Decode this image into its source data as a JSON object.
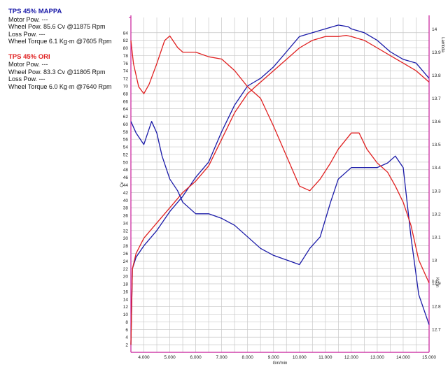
{
  "legend": [
    {
      "title": "TPS 45% MAPPA",
      "color": "#1a1aa8",
      "rows": [
        "Motor Pow. ---",
        "Wheel Pow.   85.6 Cv   @11875 Rpm",
        "Loss Pow. ---",
        "Wheel Torque   6.1 Kg·m   @7605 Rpm"
      ]
    },
    {
      "title": "TPS 45% ORI",
      "color": "#e02020",
      "rows": [
        "Motor Pow. ---",
        "Wheel Pow.   83.3 Cv   @11805 Rpm",
        "Loss Pow. ---",
        "Wheel Torque   6.0 Kg·m   @7640 Rpm"
      ]
    }
  ],
  "chart_data": {
    "type": "line",
    "xlabel": "Giri/min",
    "ylabel_left": "Cv",
    "ylabel_right_top": "Lambda",
    "ylabel_right_bottom": "Kg·m",
    "xlim": [
      3500,
      15000
    ],
    "ylim_left": [
      0,
      88
    ],
    "ylim_lambda": [
      12.6,
      14.05
    ],
    "x_ticks": [
      "4.000",
      "5.000",
      "6.000",
      "7.000",
      "8.000",
      "9.000",
      "10.000",
      "11.000",
      "12.000",
      "13.000",
      "14.000",
      "15.000"
    ],
    "y_ticks_left": [
      2,
      4,
      6,
      8,
      10,
      12,
      14,
      16,
      18,
      20,
      22,
      24,
      26,
      28,
      30,
      32,
      34,
      36,
      38,
      40,
      42,
      44,
      46,
      48,
      50,
      52,
      54,
      56,
      58,
      60,
      62,
      64,
      66,
      68,
      70,
      72,
      74,
      76,
      78,
      80,
      82,
      84
    ],
    "y_ticks_lambda": [
      12.7,
      12.8,
      12.9,
      13,
      13.1,
      13.2,
      13.3,
      13.4,
      13.5,
      13.6,
      13.7,
      13.8,
      13.9,
      14
    ],
    "grid": true,
    "colors": {
      "mappa": "#1a1aa8",
      "ori": "#e02020",
      "axis": "#c81c9a",
      "grid": "#c8c8c8"
    },
    "series": [
      {
        "name": "TPS 45% MAPPA",
        "quantity": "Wheel Pow.",
        "axis": "left",
        "color": "#1a1aa8",
        "x": [
          3500,
          3560,
          3700,
          4000,
          4500,
          5000,
          5500,
          6000,
          6500,
          7000,
          7500,
          8000,
          8500,
          9000,
          9500,
          10000,
          10500,
          11000,
          11500,
          11875,
          12000,
          12500,
          13000,
          13500,
          14000,
          14500,
          15000
        ],
        "y": [
          2,
          22,
          25,
          28,
          32,
          37,
          41,
          46,
          50,
          58,
          65,
          70,
          72,
          75,
          79,
          83,
          84,
          85,
          86,
          85.6,
          85,
          84,
          82,
          79,
          77,
          76,
          72
        ]
      },
      {
        "name": "TPS 45% ORI",
        "quantity": "Wheel Pow.",
        "axis": "left",
        "color": "#e02020",
        "x": [
          3500,
          3560,
          3700,
          4000,
          4500,
          5000,
          5500,
          6000,
          6500,
          7000,
          7500,
          8000,
          8500,
          9000,
          9500,
          10000,
          10500,
          11000,
          11500,
          11805,
          12000,
          12500,
          13000,
          13500,
          14000,
          14500,
          15000
        ],
        "y": [
          2,
          22,
          26,
          30,
          34,
          38,
          42,
          45,
          49,
          56,
          63,
          68,
          71,
          74,
          77,
          80,
          82,
          83,
          83,
          83.3,
          83,
          82,
          80,
          78,
          76,
          74,
          71
        ]
      },
      {
        "name": "TPS 45% MAPPA",
        "quantity": "Lambda",
        "axis": "lambda",
        "color": "#1a1aa8",
        "x": [
          3500,
          3700,
          4000,
          4300,
          4500,
          4700,
          5000,
          5300,
          5500,
          6000,
          6500,
          7000,
          7500,
          8000,
          8500,
          9000,
          9500,
          10000,
          10400,
          10800,
          11200,
          11500,
          12000,
          12500,
          13000,
          13400,
          13700,
          14000,
          14300,
          14600,
          15000
        ],
        "y": [
          13.6,
          13.55,
          13.5,
          13.6,
          13.55,
          13.45,
          13.35,
          13.3,
          13.25,
          13.2,
          13.2,
          13.18,
          13.15,
          13.1,
          13.05,
          13.02,
          13.0,
          12.98,
          13.05,
          13.1,
          13.25,
          13.35,
          13.4,
          13.4,
          13.4,
          13.42,
          13.45,
          13.4,
          13.1,
          12.85,
          12.72
        ]
      },
      {
        "name": "TPS 45% ORI",
        "quantity": "Lambda",
        "axis": "lambda",
        "color": "#e02020",
        "x": [
          3500,
          3600,
          3800,
          4000,
          4200,
          4500,
          4800,
          5000,
          5300,
          5500,
          6000,
          6500,
          7000,
          7500,
          8000,
          8500,
          9000,
          9500,
          10000,
          10400,
          10800,
          11200,
          11500,
          12000,
          12300,
          12600,
          13000,
          13400,
          13700,
          14000,
          14300,
          14600,
          15000
        ],
        "y": [
          13.95,
          13.85,
          13.75,
          13.72,
          13.76,
          13.85,
          13.95,
          13.97,
          13.92,
          13.9,
          13.9,
          13.88,
          13.87,
          13.82,
          13.75,
          13.7,
          13.58,
          13.45,
          13.32,
          13.3,
          13.35,
          13.42,
          13.48,
          13.55,
          13.55,
          13.48,
          13.42,
          13.38,
          13.32,
          13.25,
          13.15,
          13.0,
          12.9
        ]
      }
    ]
  }
}
